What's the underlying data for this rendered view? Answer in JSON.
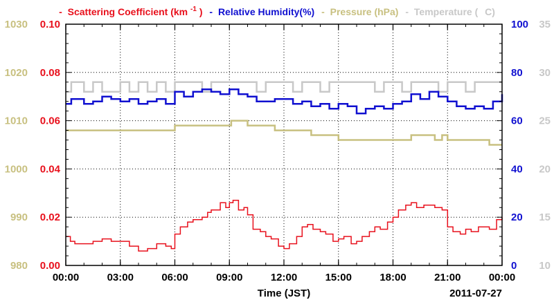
{
  "colors": {
    "scattering": "#e8101c",
    "humidity": "#1010d0",
    "pressure": "#c8c080",
    "temperature": "#c8c8c8",
    "axis": "#000000",
    "grid": "#000000"
  },
  "legend": {
    "dash": "-",
    "scattering_label": "Scattering Coefficient (km",
    "scattering_sup": "-1",
    "scattering_close": ")",
    "humidity_label": "Relative Humidity(%)",
    "pressure_label": "Pressure (hPa)",
    "temperature_label": "Temperature (",
    "temperature_unit": "C)"
  },
  "xlabel": "Time (JST)",
  "date_label": "2011-07-27",
  "chart_data": {
    "type": "line",
    "title": "",
    "xlabel": "Time (JST)",
    "x_ticks": [
      "00:00",
      "03:00",
      "06:00",
      "09:00",
      "12:00",
      "15:00",
      "18:00",
      "21:00",
      "00:00"
    ],
    "xlim_hours": [
      0,
      24
    ],
    "grid": true,
    "legend_position": "top",
    "axes": {
      "pressure": {
        "side": "left-outer",
        "range": [
          980,
          1030
        ],
        "ticks": [
          "980",
          "990",
          "1000",
          "1010",
          "1020",
          "1030"
        ]
      },
      "scattering": {
        "side": "left-inner",
        "range": [
          0.0,
          0.1
        ],
        "ticks": [
          "0.00",
          "0.02",
          "0.04",
          "0.06",
          "0.08",
          "0.10"
        ]
      },
      "humidity": {
        "side": "right-inner",
        "range": [
          0,
          100
        ],
        "ticks": [
          "0",
          "20",
          "40",
          "60",
          "80",
          "100"
        ]
      },
      "temperature": {
        "side": "right-outer",
        "range": [
          10,
          35
        ],
        "ticks": [
          "10",
          "15",
          "20",
          "25",
          "30",
          "35"
        ]
      }
    },
    "series": [
      {
        "name": "Scattering Coefficient (km-1)",
        "axis": "scattering",
        "x": [
          0,
          0.25,
          0.5,
          1,
          1.5,
          2,
          2.5,
          3,
          3.5,
          4,
          4.5,
          5,
          5.5,
          5.8,
          6,
          6.3,
          6.7,
          7,
          7.5,
          7.8,
          8,
          8.5,
          8.8,
          9,
          9.2,
          9.5,
          9.8,
          10,
          10.3,
          10.7,
          11,
          11.3,
          11.7,
          12,
          12.3,
          12.7,
          13,
          13.3,
          13.6,
          14,
          14.3,
          14.7,
          15,
          15.3,
          15.7,
          16,
          16.3,
          16.7,
          17,
          17.3,
          17.7,
          18,
          18.3,
          18.7,
          19,
          19.3,
          19.7,
          20,
          20.3,
          20.7,
          21,
          21.3,
          21.7,
          22,
          22.3,
          22.7,
          23,
          23.3,
          23.7,
          24
        ],
        "y": [
          0.012,
          0.01,
          0.009,
          0.009,
          0.01,
          0.011,
          0.01,
          0.01,
          0.008,
          0.006,
          0.007,
          0.009,
          0.008,
          0.007,
          0.013,
          0.016,
          0.018,
          0.019,
          0.02,
          0.022,
          0.023,
          0.026,
          0.024,
          0.026,
          0.027,
          0.023,
          0.024,
          0.021,
          0.015,
          0.014,
          0.012,
          0.011,
          0.008,
          0.007,
          0.009,
          0.012,
          0.016,
          0.017,
          0.015,
          0.014,
          0.013,
          0.01,
          0.011,
          0.012,
          0.009,
          0.01,
          0.012,
          0.014,
          0.016,
          0.015,
          0.018,
          0.02,
          0.023,
          0.025,
          0.026,
          0.024,
          0.025,
          0.025,
          0.024,
          0.023,
          0.016,
          0.014,
          0.013,
          0.015,
          0.014,
          0.016,
          0.016,
          0.015,
          0.019,
          0.02
        ]
      },
      {
        "name": "Relative Humidity(%)",
        "axis": "humidity",
        "x": [
          0,
          0.3,
          0.7,
          1,
          1.5,
          2,
          2.5,
          3,
          3.5,
          4,
          4.5,
          5,
          5.5,
          6,
          6.5,
          7,
          7.5,
          8,
          8.5,
          9,
          9.5,
          10,
          10.5,
          11,
          11.5,
          12,
          12.5,
          13,
          13.5,
          14,
          14.5,
          15,
          15.5,
          16,
          16.5,
          17,
          17.5,
          18,
          18.5,
          19,
          19.5,
          20,
          20.5,
          21,
          21.5,
          22,
          22.5,
          23,
          23.5,
          24
        ],
        "y": [
          67,
          69,
          69,
          67,
          68,
          70,
          69,
          68,
          69,
          67,
          68,
          69,
          67,
          72,
          70,
          72,
          73,
          72,
          71,
          73,
          71,
          70,
          68,
          68,
          69,
          69,
          67,
          68,
          66,
          67,
          65,
          67,
          66,
          63,
          65,
          66,
          65,
          67,
          68,
          71,
          69,
          72,
          70,
          68,
          66,
          65,
          66,
          65,
          68,
          71
        ]
      },
      {
        "name": "Pressure (hPa)",
        "axis": "pressure",
        "x": [
          0,
          2,
          4,
          5.9,
          6,
          7.5,
          8.9,
          9.1,
          10,
          11,
          11.5,
          12,
          13,
          13.5,
          14,
          14.8,
          15,
          16,
          17,
          18,
          19,
          19.5,
          20,
          20.3,
          20.7,
          21,
          21.5,
          22,
          23.3,
          24
        ],
        "y": [
          1008,
          1008,
          1008,
          1008,
          1009,
          1009,
          1009,
          1010,
          1009,
          1009,
          1008,
          1008,
          1008,
          1007,
          1007,
          1007,
          1006,
          1006,
          1006,
          1006,
          1007,
          1007,
          1007,
          1006,
          1007,
          1006,
          1006,
          1006,
          1005,
          1005
        ]
      },
      {
        "name": "Temperature (C)",
        "axis": "temperature",
        "x": [
          0,
          0.3,
          0.5,
          1,
          1.5,
          2,
          2.5,
          3,
          3.5,
          4,
          4.5,
          5,
          5.5,
          6,
          6.5,
          7,
          7.5,
          8,
          8.5,
          9,
          9.5,
          10,
          10.5,
          11,
          11.5,
          12,
          12.5,
          13,
          13.5,
          14,
          14.5,
          15,
          15.5,
          16,
          16.5,
          17,
          17.5,
          18,
          18.5,
          19,
          19.5,
          20,
          20.5,
          21,
          21.5,
          22,
          22.5,
          23,
          23.5,
          24
        ],
        "y": [
          28,
          29,
          29,
          28,
          29,
          28,
          28,
          29,
          28,
          29,
          28,
          29,
          28,
          29,
          29,
          29,
          28,
          29,
          29,
          29,
          29,
          29,
          28,
          29,
          29,
          29,
          28,
          29,
          29,
          28,
          29,
          29,
          29,
          29,
          29,
          28,
          29,
          29,
          28,
          29,
          29,
          29,
          28,
          29,
          29,
          28,
          29,
          29,
          29,
          29
        ]
      }
    ]
  }
}
